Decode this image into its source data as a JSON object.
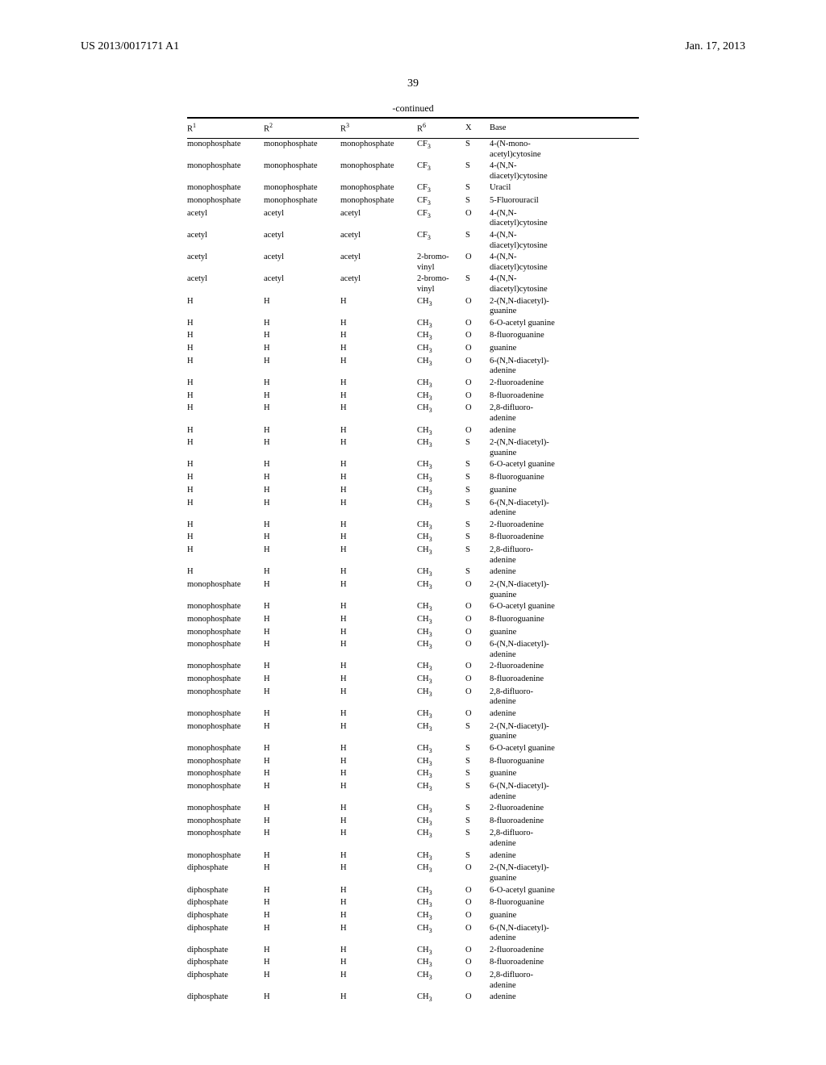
{
  "header": {
    "pubno": "US 2013/0017171 A1",
    "date": "Jan. 17, 2013"
  },
  "page_number": "39",
  "table": {
    "continued": "-continued",
    "columns": [
      "R¹",
      "R²",
      "R³",
      "R⁶",
      "X",
      "Base"
    ],
    "rows": [
      [
        "monophosphate",
        "monophosphate",
        "monophosphate",
        "CF₃",
        "S",
        "4-(N-mono-\nacetyl)cytosine"
      ],
      [
        "monophosphate",
        "monophosphate",
        "monophosphate",
        "CF₃",
        "S",
        "4-(N,N-\ndiacetyl)cytosine"
      ],
      [
        "monophosphate",
        "monophosphate",
        "monophosphate",
        "CF₃",
        "S",
        "Uracil"
      ],
      [
        "monophosphate",
        "monophosphate",
        "monophosphate",
        "CF₃",
        "S",
        "5-Fluorouracil"
      ],
      [
        "acetyl",
        "acetyl",
        "acetyl",
        "CF₃",
        "O",
        "4-(N,N-\ndiacetyl)cytosine"
      ],
      [
        "acetyl",
        "acetyl",
        "acetyl",
        "CF₃",
        "S",
        "4-(N,N-\ndiacetyl)cytosine"
      ],
      [
        "acetyl",
        "acetyl",
        "acetyl",
        "2-bromo-\nvinyl",
        "O",
        "4-(N,N-\ndiacetyl)cytosine"
      ],
      [
        "acetyl",
        "acetyl",
        "acetyl",
        "2-bromo-\nvinyl",
        "S",
        "4-(N,N-\ndiacetyl)cytosine"
      ],
      [
        "H",
        "H",
        "H",
        "CH₃",
        "O",
        "2-(N,N-diacetyl)-\nguanine"
      ],
      [
        "H",
        "H",
        "H",
        "CH₃",
        "O",
        "6-O-acetyl guanine"
      ],
      [
        "H",
        "H",
        "H",
        "CH₃",
        "O",
        "8-fluoroguanine"
      ],
      [
        "H",
        "H",
        "H",
        "CH₃",
        "O",
        "guanine"
      ],
      [
        "H",
        "H",
        "H",
        "CH₃",
        "O",
        "6-(N,N-diacetyl)-\nadenine"
      ],
      [
        "H",
        "H",
        "H",
        "CH₃",
        "O",
        "2-fluoroadenine"
      ],
      [
        "H",
        "H",
        "H",
        "CH₃",
        "O",
        "8-fluoroadenine"
      ],
      [
        "H",
        "H",
        "H",
        "CH₃",
        "O",
        "2,8-difluoro-\nadenine"
      ],
      [
        "H",
        "H",
        "H",
        "CH₃",
        "O",
        "adenine"
      ],
      [
        "H",
        "H",
        "H",
        "CH₃",
        "S",
        "2-(N,N-diacetyl)-\nguanine"
      ],
      [
        "H",
        "H",
        "H",
        "CH₃",
        "S",
        "6-O-acetyl guanine"
      ],
      [
        "H",
        "H",
        "H",
        "CH₃",
        "S",
        "8-fluoroguanine"
      ],
      [
        "H",
        "H",
        "H",
        "CH₃",
        "S",
        "guanine"
      ],
      [
        "H",
        "H",
        "H",
        "CH₃",
        "S",
        "6-(N,N-diacetyl)-\nadenine"
      ],
      [
        "H",
        "H",
        "H",
        "CH₃",
        "S",
        "2-fluoroadenine"
      ],
      [
        "H",
        "H",
        "H",
        "CH₃",
        "S",
        "8-fluoroadenine"
      ],
      [
        "H",
        "H",
        "H",
        "CH₃",
        "S",
        "2,8-difluoro-\nadenine"
      ],
      [
        "H",
        "H",
        "H",
        "CH₃",
        "S",
        "adenine"
      ],
      [
        "monophosphate",
        "H",
        "H",
        "CH₃",
        "O",
        "2-(N,N-diacetyl)-\nguanine"
      ],
      [
        "monophosphate",
        "H",
        "H",
        "CH₃",
        "O",
        "6-O-acetyl guanine"
      ],
      [
        "monophosphate",
        "H",
        "H",
        "CH₃",
        "O",
        "8-fluoroguanine"
      ],
      [
        "monophosphate",
        "H",
        "H",
        "CH₃",
        "O",
        "guanine"
      ],
      [
        "monophosphate",
        "H",
        "H",
        "CH₃",
        "O",
        "6-(N,N-diacetyl)-\nadenine"
      ],
      [
        "monophosphate",
        "H",
        "H",
        "CH₃",
        "O",
        "2-fluoroadenine"
      ],
      [
        "monophosphate",
        "H",
        "H",
        "CH₃",
        "O",
        "8-fluoroadenine"
      ],
      [
        "monophosphate",
        "H",
        "H",
        "CH₃",
        "O",
        "2,8-difluoro-\nadenine"
      ],
      [
        "monophosphate",
        "H",
        "H",
        "CH₃",
        "O",
        "adenine"
      ],
      [
        "monophosphate",
        "H",
        "H",
        "CH₃",
        "S",
        "2-(N,N-diacetyl)-\nguanine"
      ],
      [
        "monophosphate",
        "H",
        "H",
        "CH₃",
        "S",
        "6-O-acetyl guanine"
      ],
      [
        "monophosphate",
        "H",
        "H",
        "CH₃",
        "S",
        "8-fluoroguanine"
      ],
      [
        "monophosphate",
        "H",
        "H",
        "CH₃",
        "S",
        "guanine"
      ],
      [
        "monophosphate",
        "H",
        "H",
        "CH₃",
        "S",
        "6-(N,N-diacetyl)-\nadenine"
      ],
      [
        "monophosphate",
        "H",
        "H",
        "CH₃",
        "S",
        "2-fluoroadenine"
      ],
      [
        "monophosphate",
        "H",
        "H",
        "CH₃",
        "S",
        "8-fluoroadenine"
      ],
      [
        "monophosphate",
        "H",
        "H",
        "CH₃",
        "S",
        "2,8-difluoro-\nadenine"
      ],
      [
        "monophosphate",
        "H",
        "H",
        "CH₃",
        "S",
        "adenine"
      ],
      [
        "diphosphate",
        "H",
        "H",
        "CH₃",
        "O",
        "2-(N,N-diacetyl)-\nguanine"
      ],
      [
        "diphosphate",
        "H",
        "H",
        "CH₃",
        "O",
        "6-O-acetyl guanine"
      ],
      [
        "diphosphate",
        "H",
        "H",
        "CH₃",
        "O",
        "8-fluoroguanine"
      ],
      [
        "diphosphate",
        "H",
        "H",
        "CH₃",
        "O",
        "guanine"
      ],
      [
        "diphosphate",
        "H",
        "H",
        "CH₃",
        "O",
        "6-(N,N-diacetyl)-\nadenine"
      ],
      [
        "diphosphate",
        "H",
        "H",
        "CH₃",
        "O",
        "2-fluoroadenine"
      ],
      [
        "diphosphate",
        "H",
        "H",
        "CH₃",
        "O",
        "8-fluoroadenine"
      ],
      [
        "diphosphate",
        "H",
        "H",
        "CH₃",
        "O",
        "2,8-difluoro-\nadenine"
      ],
      [
        "diphosphate",
        "H",
        "H",
        "CH₃",
        "O",
        "adenine"
      ]
    ]
  }
}
